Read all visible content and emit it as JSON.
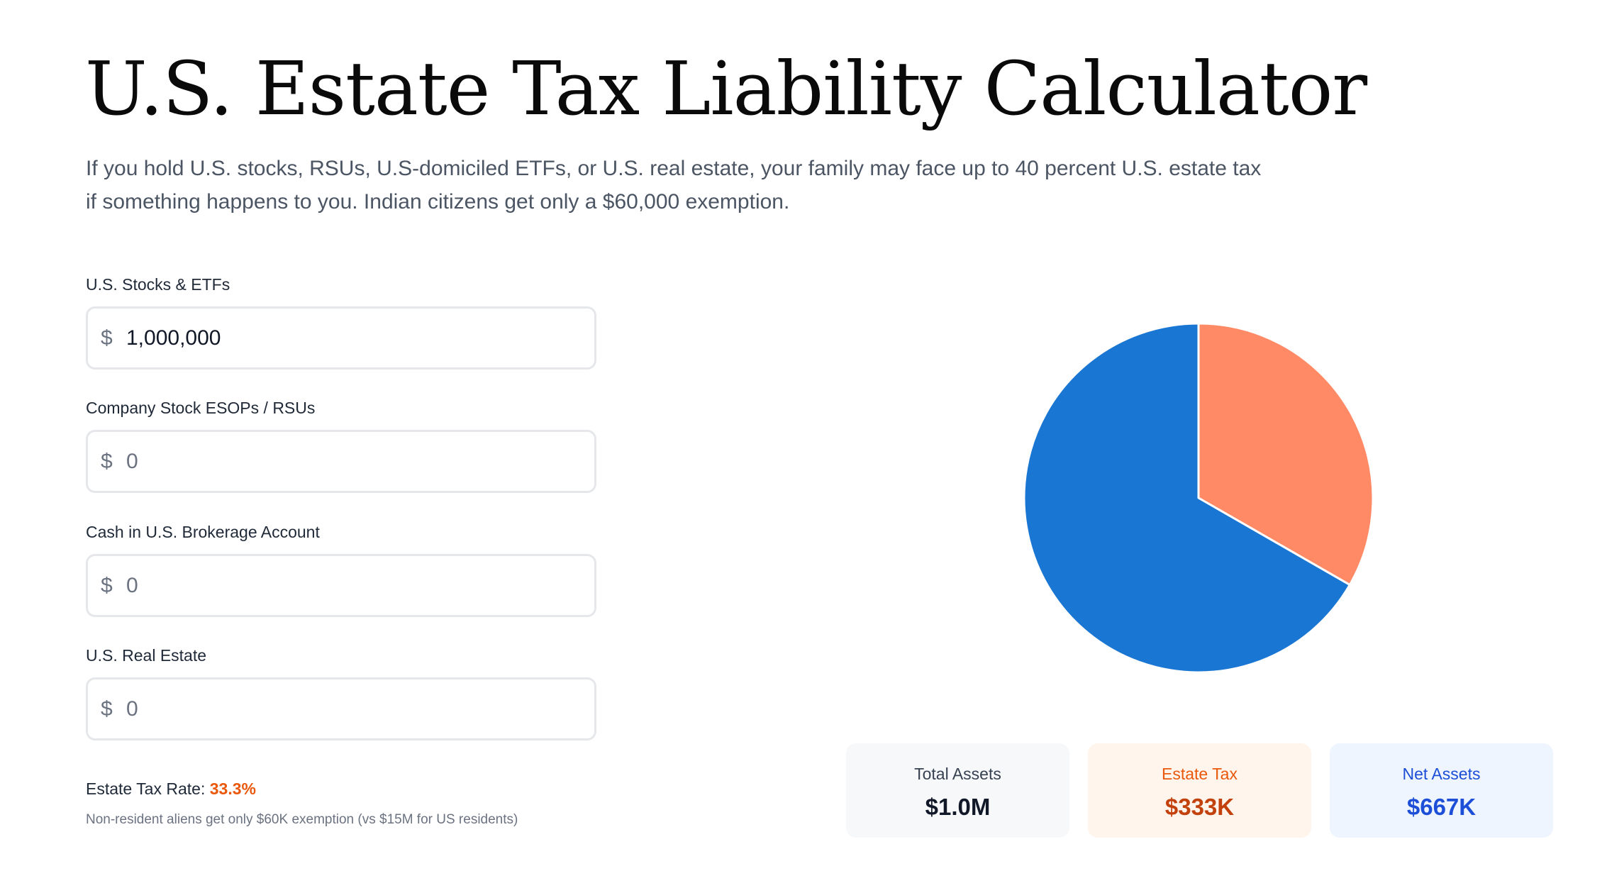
{
  "header": {
    "title": "U.S. Estate Tax Liability Calculator",
    "intro": "If you hold U.S. stocks, RSUs, U.S-domiciled ETFs, or U.S. real estate, your family may face up to 40 percent U.S. estate tax if something happens to you. Indian citizens get only a $60,000 exemption."
  },
  "form": {
    "stocks": {
      "label": "U.S. Stocks & ETFs",
      "currency": "$",
      "value": "1,000,000",
      "placeholder": "0"
    },
    "esops": {
      "label": "Company Stock ESOPs / RSUs",
      "currency": "$",
      "value": "",
      "placeholder": "0"
    },
    "cash": {
      "label": "Cash in U.S. Brokerage Account",
      "currency": "$",
      "value": "",
      "placeholder": "0"
    },
    "real_estate": {
      "label": "U.S. Real Estate",
      "currency": "$",
      "value": "",
      "placeholder": "0"
    }
  },
  "rate": {
    "label": "Estate Tax Rate: ",
    "value": "33.3%",
    "note": "Non-resident aliens get only $60K exemption (vs $15M for US residents)"
  },
  "summary": {
    "total": {
      "label": "Total Assets",
      "value": "$1.0M"
    },
    "tax": {
      "label": "Estate Tax",
      "value": "$333K"
    },
    "net": {
      "label": "Net Assets",
      "value": "$667K"
    }
  },
  "colors": {
    "tax": "#FF8A65",
    "net": "#1976D2",
    "rate_highlight": "#ea580c"
  },
  "chart_data": {
    "type": "pie",
    "categories": [
      "Estate Tax",
      "Net Assets"
    ],
    "values": [
      333,
      667
    ],
    "colors": [
      "#FF8A65",
      "#1976D2"
    ]
  }
}
